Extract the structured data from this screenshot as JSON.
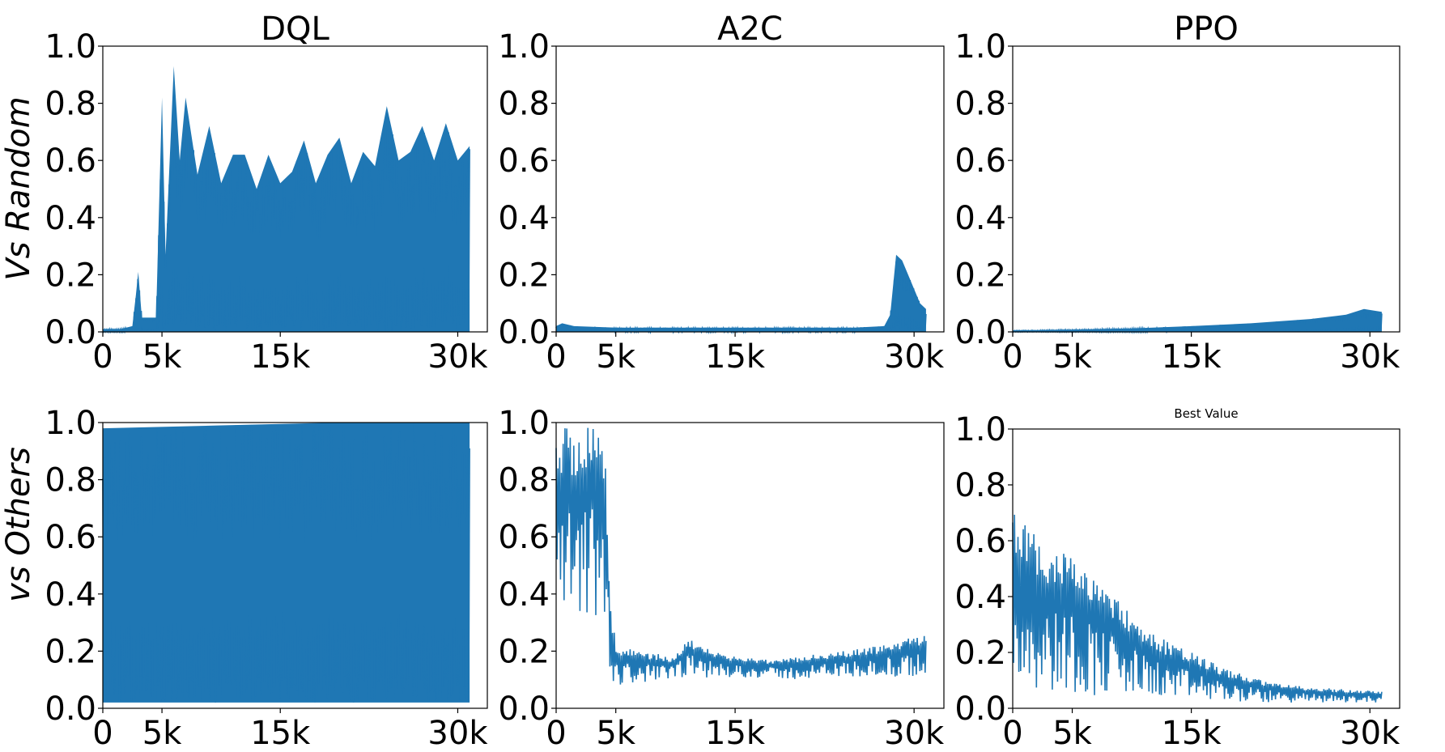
{
  "figure": {
    "row_labels": [
      "Vs Random",
      "vs Others"
    ],
    "line_color": "#1f77b4"
  },
  "chart_data": [
    {
      "type": "area",
      "panel": "top-left",
      "title": "DQL",
      "ylim": [
        0,
        1
      ],
      "yticks": [
        "0.0",
        "0.2",
        "0.4",
        "0.6",
        "0.8",
        "1.0"
      ],
      "xlim": [
        0,
        32500
      ],
      "xticks": [
        {
          "x": 0,
          "label": "0"
        },
        {
          "x": 5000,
          "label": "5k"
        },
        {
          "x": 15000,
          "label": "15k"
        },
        {
          "x": 30000,
          "label": "30k"
        }
      ],
      "series": [
        {
          "x_end": 31000,
          "envelope_top": [
            [
              0,
              0.01
            ],
            [
              1500,
              0.01
            ],
            [
              2500,
              0.02
            ],
            [
              2800,
              0.13
            ],
            [
              3000,
              0.21
            ],
            [
              3300,
              0.05
            ],
            [
              4500,
              0.05
            ],
            [
              5000,
              0.82
            ],
            [
              5300,
              0.27
            ],
            [
              6000,
              0.93
            ],
            [
              6500,
              0.6
            ],
            [
              7000,
              0.82
            ],
            [
              8000,
              0.55
            ],
            [
              9000,
              0.72
            ],
            [
              10000,
              0.52
            ],
            [
              11000,
              0.62
            ],
            [
              12000,
              0.62
            ],
            [
              13000,
              0.5
            ],
            [
              14000,
              0.62
            ],
            [
              15000,
              0.52
            ],
            [
              16000,
              0.56
            ],
            [
              17000,
              0.67
            ],
            [
              18000,
              0.52
            ],
            [
              19000,
              0.62
            ],
            [
              20000,
              0.68
            ],
            [
              21000,
              0.52
            ],
            [
              22000,
              0.63
            ],
            [
              23000,
              0.58
            ],
            [
              24000,
              0.79
            ],
            [
              25000,
              0.6
            ],
            [
              26000,
              0.63
            ],
            [
              27000,
              0.72
            ],
            [
              28000,
              0.6
            ],
            [
              29000,
              0.73
            ],
            [
              30000,
              0.6
            ],
            [
              31000,
              0.65
            ]
          ],
          "envelope_bottom": 0.0
        }
      ]
    },
    {
      "type": "area",
      "panel": "top-middle",
      "title": "A2C",
      "ylim": [
        0,
        1
      ],
      "yticks": [
        "0.0",
        "0.2",
        "0.4",
        "0.6",
        "0.8",
        "1.0"
      ],
      "xlim": [
        0,
        32500
      ],
      "xticks": [
        {
          "x": 0,
          "label": "0"
        },
        {
          "x": 5000,
          "label": "5k"
        },
        {
          "x": 15000,
          "label": "15k"
        },
        {
          "x": 30000,
          "label": "30k"
        }
      ],
      "series": [
        {
          "x_end": 31000,
          "envelope_top": [
            [
              0,
              0.02
            ],
            [
              500,
              0.03
            ],
            [
              1500,
              0.02
            ],
            [
              5000,
              0.015
            ],
            [
              15000,
              0.015
            ],
            [
              25000,
              0.015
            ],
            [
              27500,
              0.02
            ],
            [
              28000,
              0.06
            ],
            [
              28500,
              0.27
            ],
            [
              29000,
              0.25
            ],
            [
              29500,
              0.2
            ],
            [
              30000,
              0.15
            ],
            [
              30500,
              0.1
            ],
            [
              31000,
              0.08
            ]
          ],
          "envelope_bottom": 0.0
        }
      ]
    },
    {
      "type": "area",
      "panel": "top-right",
      "title": "PPO",
      "ylim": [
        0,
        1
      ],
      "yticks": [
        "0.0",
        "0.2",
        "0.4",
        "0.6",
        "0.8",
        "1.0"
      ],
      "xlim": [
        0,
        32500
      ],
      "xticks": [
        {
          "x": 0,
          "label": "0"
        },
        {
          "x": 5000,
          "label": "5k"
        },
        {
          "x": 15000,
          "label": "15k"
        },
        {
          "x": 30000,
          "label": "30k"
        }
      ],
      "series": [
        {
          "x_end": 31000,
          "envelope_top": [
            [
              0,
              0.005
            ],
            [
              5000,
              0.008
            ],
            [
              10000,
              0.012
            ],
            [
              15000,
              0.02
            ],
            [
              20000,
              0.03
            ],
            [
              25000,
              0.045
            ],
            [
              28000,
              0.06
            ],
            [
              29500,
              0.08
            ],
            [
              31000,
              0.07
            ]
          ],
          "envelope_bottom": 0.0
        }
      ]
    },
    {
      "type": "area",
      "panel": "bottom-left",
      "title": "",
      "ylim": [
        0,
        1
      ],
      "yticks": [
        "0.0",
        "0.2",
        "0.4",
        "0.6",
        "0.8",
        "1.0"
      ],
      "xlim": [
        0,
        32500
      ],
      "xticks": [
        {
          "x": 0,
          "label": "0"
        },
        {
          "x": 5000,
          "label": "5k"
        },
        {
          "x": 15000,
          "label": "15k"
        },
        {
          "x": 30000,
          "label": "30k"
        }
      ],
      "series": [
        {
          "x_end": 31000,
          "envelope_top": [
            [
              0,
              0.98
            ],
            [
              10000,
              0.99
            ],
            [
              20000,
              1.0
            ],
            [
              31000,
              1.0
            ]
          ],
          "envelope_bottom": 0.02
        }
      ]
    },
    {
      "type": "line",
      "panel": "bottom-middle",
      "title": "",
      "ylim": [
        0,
        1
      ],
      "yticks": [
        "0.0",
        "0.2",
        "0.4",
        "0.6",
        "0.8",
        "1.0"
      ],
      "xlim": [
        0,
        32500
      ],
      "xticks": [
        {
          "x": 0,
          "label": "0"
        },
        {
          "x": 5000,
          "label": "5k"
        },
        {
          "x": 15000,
          "label": "15k"
        },
        {
          "x": 30000,
          "label": "30k"
        }
      ],
      "series": [
        {
          "x_end": 31000,
          "envelope_top": [
            [
              0,
              1.0
            ],
            [
              3500,
              1.0
            ],
            [
              4200,
              0.9
            ],
            [
              4500,
              0.4
            ],
            [
              5000,
              0.22
            ],
            [
              7000,
              0.2
            ],
            [
              10000,
              0.18
            ],
            [
              11000,
              0.26
            ],
            [
              12000,
              0.22
            ],
            [
              15000,
              0.18
            ],
            [
              18000,
              0.17
            ],
            [
              22000,
              0.19
            ],
            [
              26000,
              0.21
            ],
            [
              31000,
              0.26
            ]
          ],
          "envelope_bottom_curve": [
            [
              0,
              0.2
            ],
            [
              3500,
              0.3
            ],
            [
              4500,
              0.05
            ],
            [
              5000,
              0.08
            ],
            [
              7000,
              0.09
            ],
            [
              10000,
              0.1
            ],
            [
              15000,
              0.11
            ],
            [
              20000,
              0.1
            ],
            [
              25000,
              0.11
            ],
            [
              31000,
              0.1
            ]
          ]
        }
      ]
    },
    {
      "type": "line",
      "panel": "bottom-right",
      "title": "Best Value",
      "ylim": [
        0,
        1
      ],
      "yticks": [
        "0.0",
        "0.2",
        "0.4",
        "0.6",
        "0.8",
        "1.0"
      ],
      "xlim": [
        0,
        32500
      ],
      "xticks": [
        {
          "x": 0,
          "label": "0"
        },
        {
          "x": 5000,
          "label": "5k"
        },
        {
          "x": 15000,
          "label": "15k"
        },
        {
          "x": 30000,
          "label": "30k"
        }
      ],
      "series": [
        {
          "x_end": 31000,
          "envelope_top": [
            [
              0,
              0.72
            ],
            [
              1000,
              0.68
            ],
            [
              3000,
              0.55
            ],
            [
              5000,
              0.57
            ],
            [
              7000,
              0.48
            ],
            [
              9000,
              0.38
            ],
            [
              11000,
              0.3
            ],
            [
              13000,
              0.24
            ],
            [
              15000,
              0.2
            ],
            [
              18000,
              0.14
            ],
            [
              21000,
              0.1
            ],
            [
              24000,
              0.08
            ],
            [
              27000,
              0.07
            ],
            [
              31000,
              0.06
            ]
          ],
          "envelope_bottom_curve": [
            [
              0,
              0.07
            ],
            [
              5000,
              0.05
            ],
            [
              10000,
              0.04
            ],
            [
              15000,
              0.03
            ],
            [
              20000,
              0.02
            ],
            [
              25000,
              0.02
            ],
            [
              31000,
              0.02
            ]
          ]
        }
      ]
    }
  ]
}
